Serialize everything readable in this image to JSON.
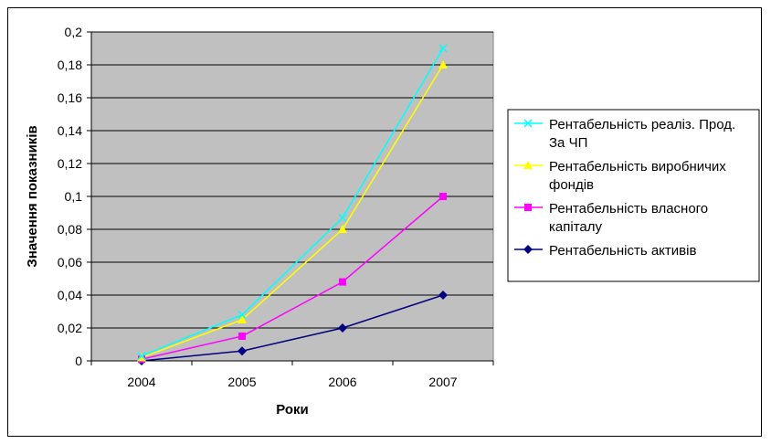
{
  "chart_data": {
    "type": "line",
    "categories": [
      "2004",
      "2005",
      "2006",
      "2007"
    ],
    "xlabel": "Роки",
    "ylabel": "Значення показників",
    "ylim": [
      0,
      0.2
    ],
    "yticks": [
      0,
      0.02,
      0.04,
      0.06,
      0.08,
      0.1,
      0.12,
      0.14,
      0.16,
      0.18,
      0.2
    ],
    "ytick_labels": [
      "0",
      "0,02",
      "0,04",
      "0,06",
      "0,08",
      "0,1",
      "0,12",
      "0,14",
      "0,16",
      "0,18",
      "0,2"
    ],
    "grid": true,
    "plot_background": "#c0c0c0",
    "legend_position": "right",
    "series": [
      {
        "name": "Рентабельність реаліз. Прод. За ЧП",
        "values": [
          0.003,
          0.028,
          0.087,
          0.19
        ],
        "color": "#00ffff",
        "marker": "x"
      },
      {
        "name": "Рентабельність виробничих фондів",
        "values": [
          0.002,
          0.025,
          0.08,
          0.18
        ],
        "color": "#ffff00",
        "marker": "triangle"
      },
      {
        "name": "Рентабельність власного капіталу",
        "values": [
          0.001,
          0.015,
          0.048,
          0.1
        ],
        "color": "#ff00ff",
        "marker": "square"
      },
      {
        "name": "Рентабельність активів",
        "values": [
          0.0,
          0.006,
          0.02,
          0.04
        ],
        "color": "#000080",
        "marker": "diamond"
      }
    ]
  }
}
